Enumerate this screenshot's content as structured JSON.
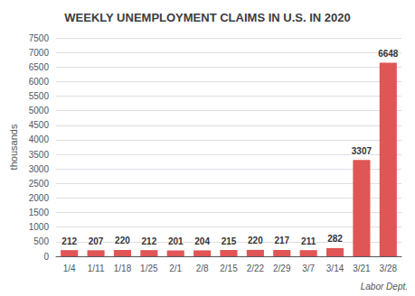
{
  "chart_data": {
    "type": "bar",
    "title": "WEEKLY UNEMPLOYMENT CLAIMS IN U.S. IN 2020",
    "ylabel": "thousands",
    "annotation": "Labor Dept.",
    "categories": [
      "1/4",
      "1/11",
      "1/18",
      "1/25",
      "2/1",
      "2/8",
      "2/15",
      "2/22",
      "2/29",
      "3/7",
      "3/14",
      "3/21",
      "3/28"
    ],
    "values": [
      212,
      207,
      220,
      212,
      201,
      204,
      215,
      220,
      217,
      211,
      282,
      3307,
      6648
    ],
    "color": "#e05555",
    "ylim": [
      0,
      7500
    ],
    "yticks": [
      0,
      500,
      1000,
      1500,
      2000,
      2500,
      3000,
      3500,
      4000,
      4500,
      5000,
      5500,
      6000,
      6500,
      7000,
      7500
    ],
    "grid": true,
    "data_labels": true
  }
}
